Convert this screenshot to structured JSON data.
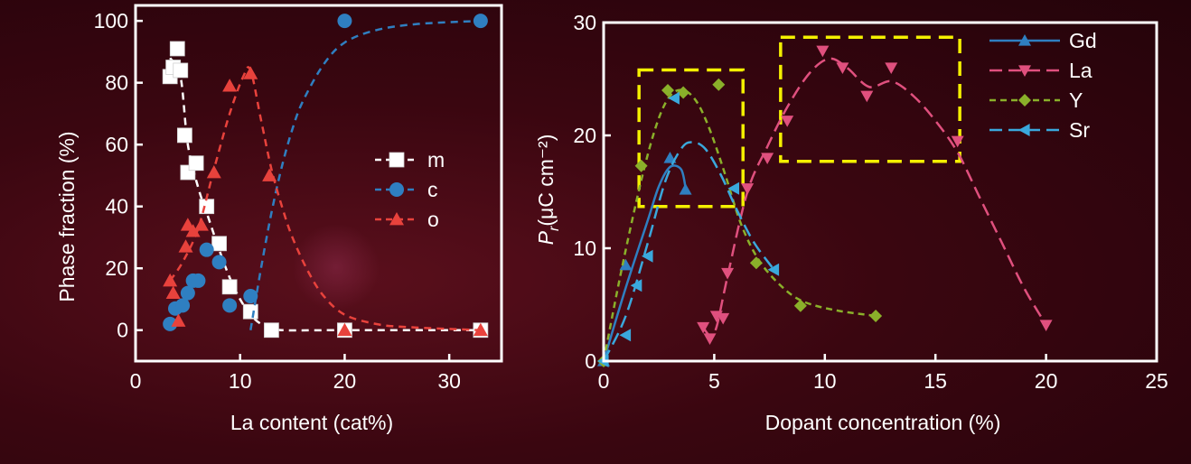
{
  "colors": {
    "axis": "#ffffff",
    "m": "#ffffff",
    "c": "#2f7fc1",
    "o": "#e8423c",
    "Gd": "#2f7fc1",
    "La": "#e0507e",
    "Y": "#8ab02a",
    "Sr": "#3aa8dc",
    "highlight": "#f4f000"
  },
  "chart_data": [
    {
      "type": "scatter",
      "xlabel": "La content (cat%)",
      "ylabel": "Phase fraction (%)",
      "xlim": [
        0,
        35
      ],
      "ylim": [
        -10,
        105
      ],
      "xticks": [
        0,
        10,
        20,
        30
      ],
      "yticks": [
        0,
        20,
        40,
        60,
        80,
        100
      ],
      "legend_position": "center-right",
      "series": [
        {
          "name": "m",
          "marker": "square",
          "points": [
            [
              3.3,
              82
            ],
            [
              3.6,
              85
            ],
            [
              4.0,
              91
            ],
            [
              4.3,
              84
            ],
            [
              4.7,
              63
            ],
            [
              5.0,
              51
            ],
            [
              5.8,
              54
            ],
            [
              6.8,
              40
            ],
            [
              8.0,
              28
            ],
            [
              9.0,
              14
            ],
            [
              11.0,
              6
            ],
            [
              13.0,
              0
            ],
            [
              20.0,
              0
            ],
            [
              33.0,
              0
            ]
          ],
          "fit": [
            [
              3.3,
              88
            ],
            [
              4.3,
              82
            ],
            [
              5.0,
              60
            ],
            [
              6.0,
              46
            ],
            [
              7.0,
              36
            ],
            [
              8.0,
              26
            ],
            [
              9.0,
              17
            ],
            [
              10.0,
              10
            ],
            [
              11.0,
              5
            ],
            [
              12.0,
              2
            ],
            [
              13.0,
              1
            ],
            [
              14.0,
              0
            ],
            [
              20.0,
              0
            ],
            [
              33.0,
              0
            ]
          ]
        },
        {
          "name": "c",
          "marker": "circle",
          "points": [
            [
              3.3,
              2
            ],
            [
              3.8,
              7
            ],
            [
              4.5,
              8
            ],
            [
              5.0,
              12
            ],
            [
              5.5,
              16
            ],
            [
              6.0,
              16
            ],
            [
              6.8,
              26
            ],
            [
              8.0,
              22
            ],
            [
              9.0,
              8
            ],
            [
              11.0,
              11
            ],
            [
              20.0,
              100
            ],
            [
              33.0,
              100
            ]
          ],
          "fit": [
            [
              11.0,
              0
            ],
            [
              12.0,
              20
            ],
            [
              13.0,
              38
            ],
            [
              14.0,
              53
            ],
            [
              15.0,
              65
            ],
            [
              16.0,
              74
            ],
            [
              18.0,
              86
            ],
            [
              20.0,
              93
            ],
            [
              23.0,
              97
            ],
            [
              27.0,
              99
            ],
            [
              33.0,
              100
            ]
          ]
        },
        {
          "name": "o",
          "marker": "triangle-up",
          "points": [
            [
              3.3,
              16
            ],
            [
              3.6,
              12
            ],
            [
              4.1,
              3
            ],
            [
              4.8,
              27
            ],
            [
              5.0,
              34
            ],
            [
              5.5,
              32
            ],
            [
              6.3,
              34
            ],
            [
              7.5,
              51
            ],
            [
              9.0,
              79
            ],
            [
              11.0,
              83
            ],
            [
              12.8,
              50
            ],
            [
              20.0,
              0
            ],
            [
              33.0,
              0
            ]
          ],
          "fit": [
            [
              3.3,
              16
            ],
            [
              4.5,
              22
            ],
            [
              6.0,
              33
            ],
            [
              7.5,
              52
            ],
            [
              9.0,
              70
            ],
            [
              10.3,
              82
            ],
            [
              11.0,
              84
            ],
            [
              12.0,
              68
            ],
            [
              13.0,
              52
            ],
            [
              14.0,
              40
            ],
            [
              15.0,
              30
            ],
            [
              16.5,
              19
            ],
            [
              18.0,
              11
            ],
            [
              20.0,
              5
            ],
            [
              23.0,
              2
            ],
            [
              26.0,
              1
            ],
            [
              33.0,
              0
            ]
          ]
        }
      ]
    },
    {
      "type": "line",
      "xlabel": "Dopant concentration (%)",
      "ylabel": "P",
      "ylabel_subscript": "r",
      "ylabel_unit": "(μC cm⁻²)",
      "xlim": [
        0,
        25
      ],
      "ylim": [
        0,
        30
      ],
      "xticks": [
        0,
        5,
        10,
        15,
        20,
        25
      ],
      "yticks": [
        0,
        10,
        20,
        30
      ],
      "legend_position": "top-right",
      "series": [
        {
          "name": "Gd",
          "marker": "triangle-up",
          "line": "solid",
          "points": [
            [
              0,
              0
            ],
            [
              1.0,
              8.5
            ],
            [
              3.0,
              18
            ],
            [
              3.7,
              15.2
            ]
          ],
          "fit": [
            [
              0,
              0
            ],
            [
              1.0,
              6.5
            ],
            [
              2.0,
              12.5
            ],
            [
              2.5,
              15.5
            ],
            [
              3.0,
              17.2
            ],
            [
              3.5,
              17.0
            ],
            [
              3.7,
              15.4
            ]
          ]
        },
        {
          "name": "La",
          "marker": "triangle-down",
          "line": "dashed",
          "points": [
            [
              4.5,
              3.0
            ],
            [
              4.8,
              2.0
            ],
            [
              5.1,
              4.0
            ],
            [
              5.4,
              3.8
            ],
            [
              5.6,
              7.8
            ],
            [
              6.5,
              15.3
            ],
            [
              7.4,
              18.0
            ],
            [
              8.3,
              21.3
            ],
            [
              9.9,
              27.5
            ],
            [
              10.8,
              26.0
            ],
            [
              11.9,
              23.5
            ],
            [
              13.0,
              26.0
            ],
            [
              16.0,
              19.5
            ],
            [
              20.0,
              3.2
            ]
          ],
          "fit": [
            [
              4.5,
              3.0
            ],
            [
              4.8,
              2.3
            ],
            [
              5.1,
              3.0
            ],
            [
              5.6,
              7.5
            ],
            [
              6.5,
              15.0
            ],
            [
              7.4,
              19.0
            ],
            [
              8.3,
              22.5
            ],
            [
              9.3,
              25.5
            ],
            [
              10.2,
              26.8
            ],
            [
              11.0,
              26.0
            ],
            [
              12.0,
              24.3
            ],
            [
              13.0,
              24.8
            ],
            [
              14.0,
              23.5
            ],
            [
              15.0,
              21.3
            ],
            [
              16.0,
              18.5
            ],
            [
              17.0,
              14.5
            ],
            [
              18.0,
              10.5
            ],
            [
              19.0,
              6.5
            ],
            [
              20.0,
              3.2
            ]
          ]
        },
        {
          "name": "Y",
          "marker": "diamond",
          "line": "short-dashed",
          "points": [
            [
              0,
              0
            ],
            [
              1.7,
              17.3
            ],
            [
              2.9,
              24.0
            ],
            [
              3.6,
              23.8
            ],
            [
              5.2,
              24.5
            ],
            [
              6.9,
              8.7
            ],
            [
              8.9,
              4.9
            ],
            [
              12.3,
              4.0
            ]
          ],
          "fit": [
            [
              0,
              0
            ],
            [
              0.8,
              8.0
            ],
            [
              1.7,
              16.0
            ],
            [
              2.4,
              21.0
            ],
            [
              3.0,
              23.5
            ],
            [
              3.6,
              24.0
            ],
            [
              4.2,
              23.0
            ],
            [
              4.8,
              20.5
            ],
            [
              5.5,
              16.5
            ],
            [
              6.2,
              12.2
            ],
            [
              7.0,
              9.0
            ],
            [
              8.0,
              6.7
            ],
            [
              9.0,
              5.3
            ],
            [
              10.5,
              4.5
            ],
            [
              12.3,
              4.0
            ]
          ]
        },
        {
          "name": "Sr",
          "marker": "triangle-left",
          "line": "dashed",
          "points": [
            [
              0,
              0
            ],
            [
              1.0,
              2.3
            ],
            [
              1.5,
              6.7
            ],
            [
              2.0,
              9.3
            ],
            [
              3.2,
              23.3
            ],
            [
              5.9,
              15.3
            ],
            [
              7.7,
              8.1
            ]
          ],
          "fit": [
            [
              0,
              0
            ],
            [
              1.0,
              4.0
            ],
            [
              2.0,
              10.5
            ],
            [
              2.8,
              16.0
            ],
            [
              3.5,
              18.8
            ],
            [
              4.0,
              19.4
            ],
            [
              4.6,
              18.8
            ],
            [
              5.3,
              16.5
            ],
            [
              6.0,
              13.5
            ],
            [
              6.8,
              10.5
            ],
            [
              7.7,
              8.1
            ]
          ]
        }
      ],
      "annotations": [
        {
          "type": "dashed-box",
          "x0": 1.6,
          "x1": 6.3,
          "y0": 13.7,
          "y1": 25.8
        },
        {
          "type": "dashed-box",
          "x0": 8.0,
          "x1": 16.1,
          "y0": 17.7,
          "y1": 28.7
        }
      ]
    }
  ]
}
